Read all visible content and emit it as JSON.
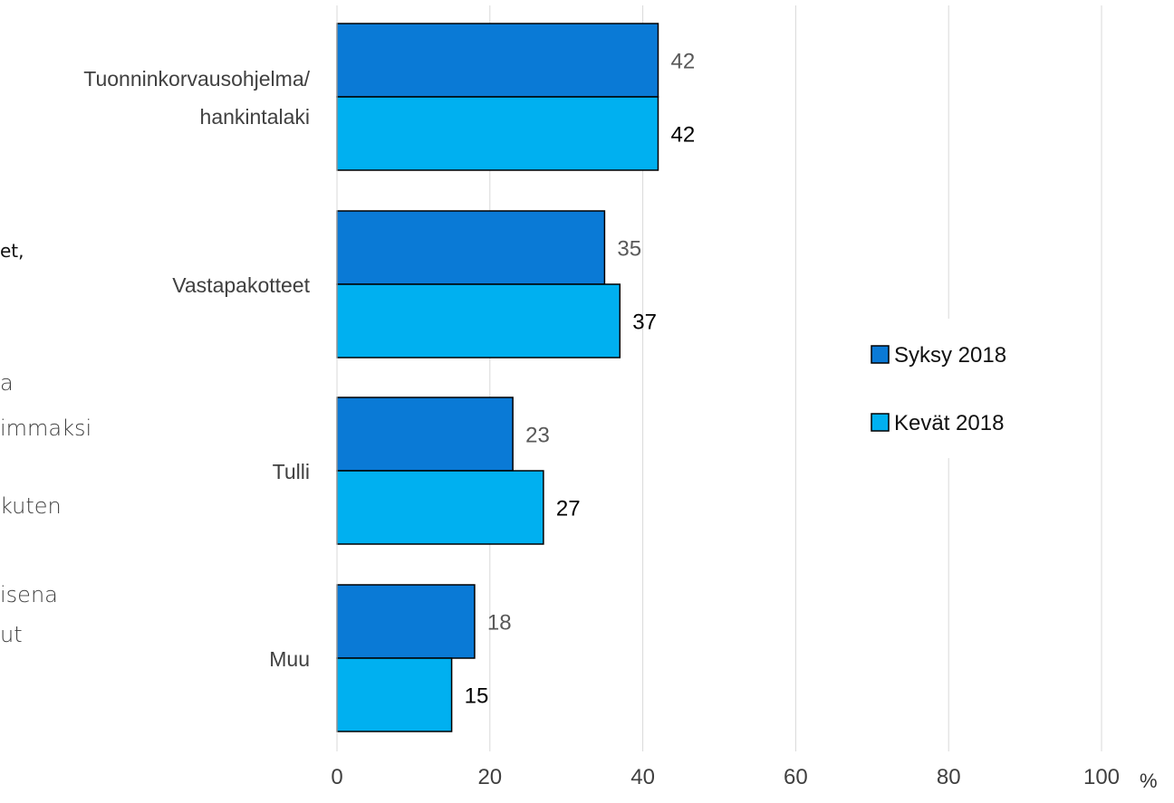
{
  "chart_data": {
    "type": "bar",
    "orientation": "horizontal",
    "categories": [
      "Tuonninkorvausohjelma/\nhankintalaki",
      "Vastapakotteet",
      "Tulli",
      "Muu"
    ],
    "series": [
      {
        "name": "Syksy 2018",
        "values": [
          42,
          35,
          23,
          18
        ],
        "color": "#0a7ad6",
        "label_color": "#595959"
      },
      {
        "name": "Kevät 2018",
        "values": [
          42,
          37,
          27,
          15
        ],
        "color": "#00b0f0",
        "label_color": "#000000"
      }
    ],
    "xlim": [
      0,
      100
    ],
    "xticks": [
      0,
      20,
      40,
      60,
      80,
      100
    ],
    "unit_label": "%",
    "grid": true,
    "legend_position": "right"
  },
  "left_fragments": [
    "et,",
    "a",
    "immaksi",
    "kuten",
    "isena",
    "ut"
  ],
  "colors": {
    "grid": "#d9d9d9",
    "bar_stroke": "#000000",
    "tick_text": "#404040"
  }
}
